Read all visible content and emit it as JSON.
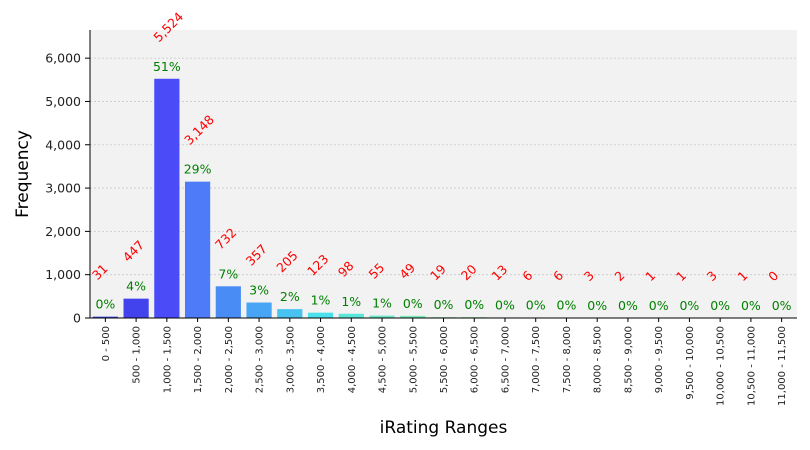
{
  "chart_data": {
    "type": "bar",
    "title": "",
    "xlabel": "iRating Ranges",
    "ylabel": "Frequency",
    "ylim": [
      0,
      6650
    ],
    "yticks": [
      0,
      1000,
      2000,
      3000,
      4000,
      5000,
      6000
    ],
    "ytick_labels": [
      "0",
      "1,000",
      "2,000",
      "3,000",
      "4,000",
      "5,000",
      "6,000"
    ],
    "grid": true,
    "background_color": "#f2f2f2",
    "count_label_color": "#ff0000",
    "percent_label_color": "#008000",
    "categories": [
      "0 - 500",
      "500 - 1,000",
      "1,000 - 1,500",
      "1,500 - 2,000",
      "2,000 - 2,500",
      "2,500 - 3,000",
      "3,000 - 3,500",
      "3,500 - 4,000",
      "4,000 - 4,500",
      "4,500 - 5,000",
      "5,000 - 5,500",
      "5,500 - 6,000",
      "6,000 - 6,500",
      "6,500 - 7,000",
      "7,000 - 7,500",
      "7,500 - 8,000",
      "8,000 - 8,500",
      "8,500 - 9,000",
      "9,000 - 9,500",
      "9,500 - 10,000",
      "10,000 - 10,500",
      "10,500 - 11,000",
      "11,000 - 11,500"
    ],
    "values": [
      31,
      447,
      5524,
      3148,
      732,
      357,
      205,
      123,
      98,
      55,
      49,
      19,
      20,
      13,
      6,
      6,
      3,
      2,
      1,
      1,
      3,
      1,
      0
    ],
    "count_labels": [
      "31",
      "447",
      "5,524",
      "3,148",
      "732",
      "357",
      "205",
      "123",
      "98",
      "55",
      "49",
      "19",
      "20",
      "13",
      "6",
      "6",
      "3",
      "2",
      "1",
      "1",
      "3",
      "1",
      "0"
    ],
    "percent_labels": [
      "0%",
      "4%",
      "51%",
      "29%",
      "7%",
      "3%",
      "2%",
      "1%",
      "1%",
      "1%",
      "0%",
      "0%",
      "0%",
      "0%",
      "0%",
      "0%",
      "0%",
      "0%",
      "0%",
      "0%",
      "0%",
      "0%",
      "0%"
    ],
    "colors": [
      "#3f3fe0",
      "#4343ee",
      "#4b4bf8",
      "#4e7cf8",
      "#4a8cf6",
      "#48a4f4",
      "#48c2f0",
      "#4ae0ec",
      "#5ae6d8",
      "#6ae8c8",
      "#7ae8b8",
      "#8ce8a8",
      "#a0e89c",
      "#b4e690",
      "#c8e486",
      "#dce07c",
      "#ecd872",
      "#f4c866",
      "#f8b45c",
      "#f89c54",
      "#f8844c",
      "#f46c46",
      "#ee5640"
    ]
  }
}
